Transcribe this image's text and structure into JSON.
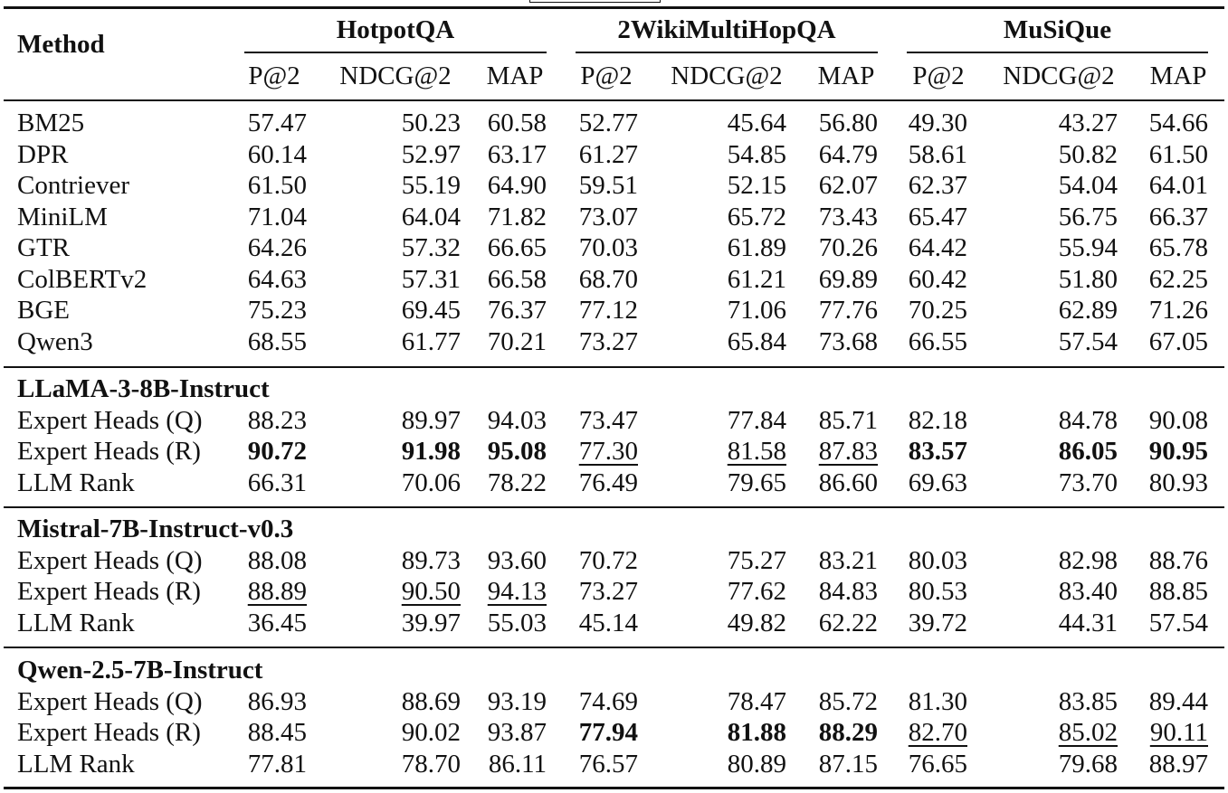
{
  "table": {
    "method_header": "Method",
    "datasets": [
      "HotpotQA",
      "2WikiMultiHopQA",
      "MuSiQue"
    ],
    "metrics": [
      "P@2",
      "NDCG@2",
      "MAP"
    ],
    "baselines": [
      {
        "method": "BM25",
        "values": [
          "57.47",
          "50.23",
          "60.58",
          "52.77",
          "45.64",
          "56.80",
          "49.30",
          "43.27",
          "54.66"
        ]
      },
      {
        "method": "DPR",
        "values": [
          "60.14",
          "52.97",
          "63.17",
          "61.27",
          "54.85",
          "64.79",
          "58.61",
          "50.82",
          "61.50"
        ]
      },
      {
        "method": "Contriever",
        "values": [
          "61.50",
          "55.19",
          "64.90",
          "59.51",
          "52.15",
          "62.07",
          "62.37",
          "54.04",
          "64.01"
        ]
      },
      {
        "method": "MiniLM",
        "values": [
          "71.04",
          "64.04",
          "71.82",
          "73.07",
          "65.72",
          "73.43",
          "65.47",
          "56.75",
          "66.37"
        ]
      },
      {
        "method": "GTR",
        "values": [
          "64.26",
          "57.32",
          "66.65",
          "70.03",
          "61.89",
          "70.26",
          "64.42",
          "55.94",
          "65.78"
        ]
      },
      {
        "method": "ColBERTv2",
        "values": [
          "64.63",
          "57.31",
          "66.58",
          "68.70",
          "61.21",
          "69.89",
          "60.42",
          "51.80",
          "62.25"
        ]
      },
      {
        "method": "BGE",
        "values": [
          "75.23",
          "69.45",
          "76.37",
          "77.12",
          "71.06",
          "77.76",
          "70.25",
          "62.89",
          "71.26"
        ]
      },
      {
        "method": "Qwen3",
        "values": [
          "68.55",
          "61.77",
          "70.21",
          "73.27",
          "65.84",
          "73.68",
          "66.55",
          "57.54",
          "67.05"
        ]
      }
    ],
    "groups": [
      {
        "title": "LLaMA-3-8B-Instruct",
        "rows": [
          {
            "method": "Expert Heads (Q)",
            "values": [
              "88.23",
              "89.97",
              "94.03",
              "73.47",
              "77.84",
              "85.71",
              "82.18",
              "84.78",
              "90.08"
            ],
            "style": [
              "",
              "",
              "",
              "",
              "",
              "",
              "",
              "",
              ""
            ]
          },
          {
            "method": "Expert Heads (R)",
            "values": [
              "90.72",
              "91.98",
              "95.08",
              "77.30",
              "81.58",
              "87.83",
              "83.57",
              "86.05",
              "90.95"
            ],
            "style": [
              "b",
              "b",
              "b",
              "u",
              "u",
              "u",
              "b",
              "b",
              "b"
            ]
          },
          {
            "method": "LLM Rank",
            "values": [
              "66.31",
              "70.06",
              "78.22",
              "76.49",
              "79.65",
              "86.60",
              "69.63",
              "73.70",
              "80.93"
            ],
            "style": [
              "",
              "",
              "",
              "",
              "",
              "",
              "",
              "",
              ""
            ]
          }
        ]
      },
      {
        "title": "Mistral-7B-Instruct-v0.3",
        "rows": [
          {
            "method": "Expert Heads (Q)",
            "values": [
              "88.08",
              "89.73",
              "93.60",
              "70.72",
              "75.27",
              "83.21",
              "80.03",
              "82.98",
              "88.76"
            ],
            "style": [
              "",
              "",
              "",
              "",
              "",
              "",
              "",
              "",
              ""
            ]
          },
          {
            "method": "Expert Heads (R)",
            "values": [
              "88.89",
              "90.50",
              "94.13",
              "73.27",
              "77.62",
              "84.83",
              "80.53",
              "83.40",
              "88.85"
            ],
            "style": [
              "u",
              "u",
              "u",
              "",
              "",
              "",
              "",
              "",
              ""
            ]
          },
          {
            "method": "LLM Rank",
            "values": [
              "36.45",
              "39.97",
              "55.03",
              "45.14",
              "49.82",
              "62.22",
              "39.72",
              "44.31",
              "57.54"
            ],
            "style": [
              "",
              "",
              "",
              "",
              "",
              "",
              "",
              "",
              ""
            ]
          }
        ]
      },
      {
        "title": "Qwen-2.5-7B-Instruct",
        "rows": [
          {
            "method": "Expert Heads (Q)",
            "values": [
              "86.93",
              "88.69",
              "93.19",
              "74.69",
              "78.47",
              "85.72",
              "81.30",
              "83.85",
              "89.44"
            ],
            "style": [
              "",
              "",
              "",
              "",
              "",
              "",
              "",
              "",
              ""
            ]
          },
          {
            "method": "Expert Heads (R)",
            "values": [
              "88.45",
              "90.02",
              "93.87",
              "77.94",
              "81.88",
              "88.29",
              "82.70",
              "85.02",
              "90.11"
            ],
            "style": [
              "",
              "",
              "",
              "b",
              "b",
              "b",
              "u",
              "u",
              "u"
            ]
          },
          {
            "method": "LLM Rank",
            "values": [
              "77.81",
              "78.70",
              "86.11",
              "76.57",
              "80.89",
              "87.15",
              "76.65",
              "79.68",
              "88.97"
            ],
            "style": [
              "",
              "",
              "",
              "",
              "",
              "",
              "",
              "",
              ""
            ]
          }
        ]
      }
    ]
  }
}
